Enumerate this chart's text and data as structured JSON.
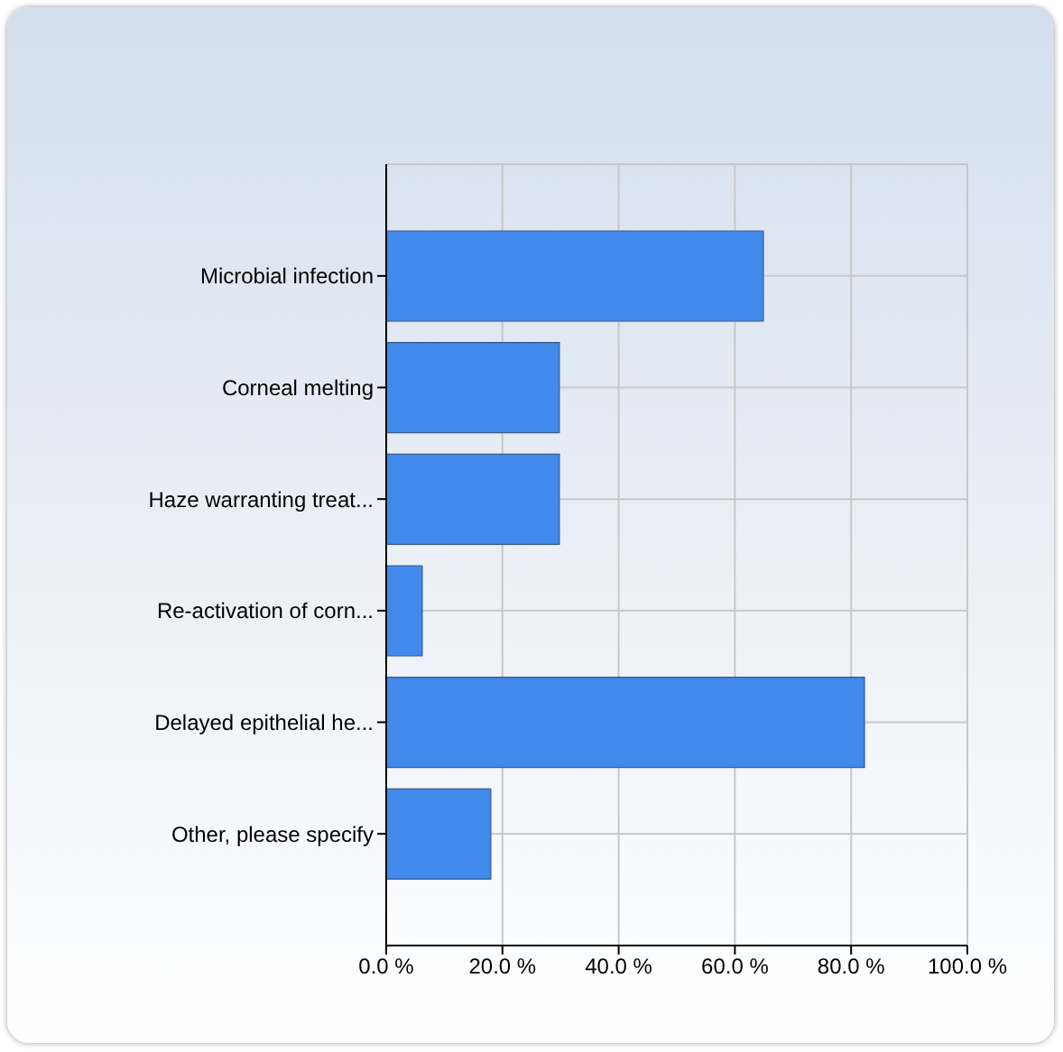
{
  "chart_data": {
    "type": "bar",
    "orientation": "horizontal",
    "categories": [
      "Microbial infection",
      "Corneal melting",
      "Haze warranting treat...",
      "Re-activation of corn...",
      "Delayed epithelial he...",
      "Other, please specify"
    ],
    "values": [
      64.9,
      29.8,
      29.8,
      6.2,
      82.3,
      18.0
    ],
    "color": "#4189ea",
    "xlim": [
      0,
      100
    ],
    "xticks": [
      {
        "value": 0,
        "label": "0.0 %"
      },
      {
        "value": 20,
        "label": "20.0 %"
      },
      {
        "value": 40,
        "label": "40.0 %"
      },
      {
        "value": 60,
        "label": "60.0 %"
      },
      {
        "value": 80,
        "label": "80.0 %"
      },
      {
        "value": 100,
        "label": "100.0 %"
      }
    ],
    "grid": true
  }
}
